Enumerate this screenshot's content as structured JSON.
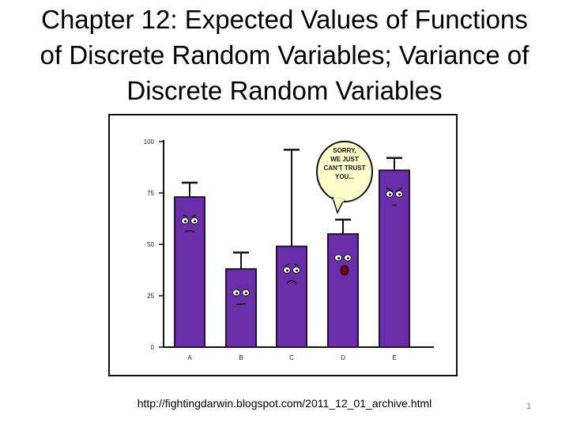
{
  "slide": {
    "title_lines": [
      "Chapter 12: Expected Values of Functions",
      "of Discrete Random Variables; Variance of",
      "Discrete Random Variables"
    ],
    "source": "http://fightingdarwin.blogspot.com/2011_12_01_archive.html",
    "page_number": "1"
  },
  "colors": {
    "bar": "#6a2fa8",
    "bar_edge": "#241040",
    "axis": "#111111",
    "speech": "#ffffcc"
  },
  "chart_data": {
    "type": "bar",
    "title": "",
    "xlabel": "",
    "ylabel": "",
    "categories": [
      "A",
      "B",
      "C",
      "D",
      "E"
    ],
    "values": [
      73,
      38,
      49,
      55,
      86
    ],
    "error_upper": [
      80,
      46,
      96,
      62,
      92
    ],
    "ylim": [
      0,
      100
    ],
    "yticks": [
      0,
      25,
      50,
      75,
      100
    ],
    "ytick_labels": [
      "0",
      "25",
      "50",
      "75",
      "100"
    ],
    "grid": false,
    "legend": "none",
    "speech_bubble": [
      "SORRY,",
      "WE JUST",
      "CAN'T TRUST",
      "YOU..."
    ],
    "faces": [
      "frown",
      "flat",
      "worried",
      "shouting",
      "angry"
    ]
  }
}
